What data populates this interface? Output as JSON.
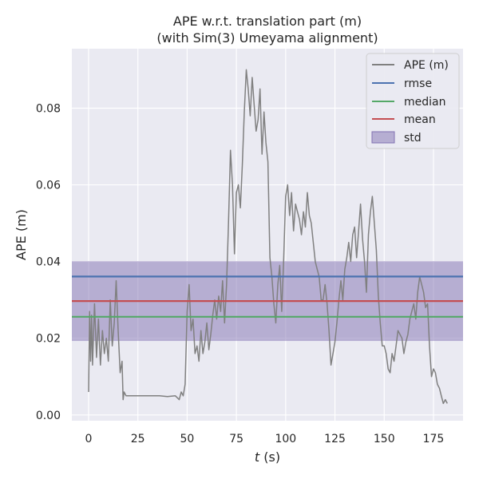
{
  "chart_data": {
    "type": "line",
    "title_line1": "APE w.r.t. translation part (m)",
    "title_line2": "(with Sim(3) Umeyama alignment)",
    "xlabel_var": "t",
    "xlabel_unit": " (s)",
    "ylabel": "APE (m)",
    "xlim": [
      -8.5,
      190
    ],
    "ylim": [
      -0.0015,
      0.0955
    ],
    "xticks": [
      0,
      25,
      50,
      75,
      100,
      125,
      150,
      175
    ],
    "xtick_labels": [
      "0",
      "25",
      "50",
      "75",
      "100",
      "125",
      "150",
      "175"
    ],
    "yticks": [
      0.0,
      0.02,
      0.04,
      0.06,
      0.08
    ],
    "ytick_labels": [
      "0.00",
      "0.02",
      "0.04",
      "0.06",
      "0.08"
    ],
    "grid": true,
    "legend_position": "top-right",
    "colors": {
      "background": "#eaeaf2",
      "grid": "#ffffff",
      "ape": "#808080",
      "rmse": "#4c72b0",
      "median": "#55a868",
      "mean": "#c44e52",
      "std": "#8172b2"
    },
    "series": [
      {
        "name": "APE (m)",
        "x": [
          0,
          0.5,
          1,
          1.5,
          2,
          3,
          4,
          5,
          6,
          7,
          8,
          9,
          10,
          11,
          12,
          13,
          14,
          15,
          16,
          17,
          17.5,
          18,
          19,
          20,
          22,
          25,
          28,
          32,
          36,
          40,
          44,
          45,
          46,
          47,
          48,
          49,
          50,
          51,
          52,
          53,
          54,
          55,
          56,
          57,
          58,
          59,
          60,
          61,
          62,
          63,
          64,
          65,
          66,
          67,
          68,
          69,
          70,
          71,
          72,
          73,
          74,
          75,
          76,
          77,
          78,
          79,
          80,
          81,
          82,
          83,
          84,
          85,
          86,
          87,
          88,
          89,
          90,
          91,
          92,
          93,
          94,
          95,
          96,
          97,
          98,
          99,
          100,
          101,
          102,
          103,
          104,
          105,
          106,
          107,
          108,
          109,
          110,
          111,
          112,
          113,
          114,
          115,
          116,
          117,
          118,
          119,
          120,
          121,
          122,
          123,
          124,
          125,
          126,
          127,
          128,
          129,
          130,
          131,
          132,
          133,
          134,
          135,
          136,
          137,
          138,
          139,
          140,
          141,
          142,
          143,
          144,
          145,
          146,
          147,
          148,
          149,
          150,
          151,
          152,
          153,
          154,
          155,
          156,
          157,
          158,
          159,
          160,
          161,
          162,
          163,
          164,
          165,
          166,
          167,
          168,
          169,
          170,
          171,
          172,
          173,
          174,
          175,
          176,
          177,
          178,
          179,
          180,
          181,
          182
        ],
        "y": [
          0.006,
          0.027,
          0.014,
          0.026,
          0.013,
          0.029,
          0.015,
          0.025,
          0.013,
          0.022,
          0.016,
          0.02,
          0.014,
          0.03,
          0.018,
          0.024,
          0.035,
          0.022,
          0.011,
          0.014,
          0.004,
          0.006,
          0.005,
          0.005,
          0.005,
          0.005,
          0.005,
          0.005,
          0.005,
          0.0048,
          0.005,
          0.0045,
          0.004,
          0.006,
          0.005,
          0.008,
          0.027,
          0.034,
          0.022,
          0.025,
          0.016,
          0.018,
          0.014,
          0.022,
          0.016,
          0.019,
          0.024,
          0.017,
          0.021,
          0.026,
          0.03,
          0.025,
          0.031,
          0.027,
          0.035,
          0.024,
          0.034,
          0.05,
          0.069,
          0.06,
          0.042,
          0.058,
          0.06,
          0.054,
          0.065,
          0.079,
          0.09,
          0.085,
          0.078,
          0.088,
          0.081,
          0.074,
          0.077,
          0.085,
          0.068,
          0.079,
          0.071,
          0.066,
          0.041,
          0.036,
          0.029,
          0.024,
          0.034,
          0.039,
          0.027,
          0.041,
          0.057,
          0.06,
          0.052,
          0.058,
          0.048,
          0.055,
          0.053,
          0.051,
          0.047,
          0.053,
          0.049,
          0.058,
          0.052,
          0.05,
          0.045,
          0.04,
          0.038,
          0.036,
          0.03,
          0.03,
          0.034,
          0.029,
          0.022,
          0.013,
          0.016,
          0.019,
          0.024,
          0.03,
          0.035,
          0.03,
          0.038,
          0.041,
          0.045,
          0.04,
          0.047,
          0.049,
          0.041,
          0.048,
          0.055,
          0.046,
          0.04,
          0.032,
          0.047,
          0.053,
          0.057,
          0.05,
          0.043,
          0.031,
          0.024,
          0.018,
          0.018,
          0.016,
          0.012,
          0.011,
          0.016,
          0.014,
          0.018,
          0.022,
          0.021,
          0.02,
          0.016,
          0.019,
          0.021,
          0.025,
          0.027,
          0.029,
          0.025,
          0.032,
          0.036,
          0.034,
          0.032,
          0.028,
          0.029,
          0.018,
          0.01,
          0.012,
          0.011,
          0.008,
          0.007,
          0.005,
          0.003,
          0.004,
          0.003
        ]
      },
      {
        "name": "rmse",
        "value": 0.0361
      },
      {
        "name": "median",
        "value": 0.0256
      },
      {
        "name": "mean",
        "value": 0.0297
      },
      {
        "name": "std",
        "range": [
          0.0193,
          0.0401
        ]
      }
    ]
  }
}
